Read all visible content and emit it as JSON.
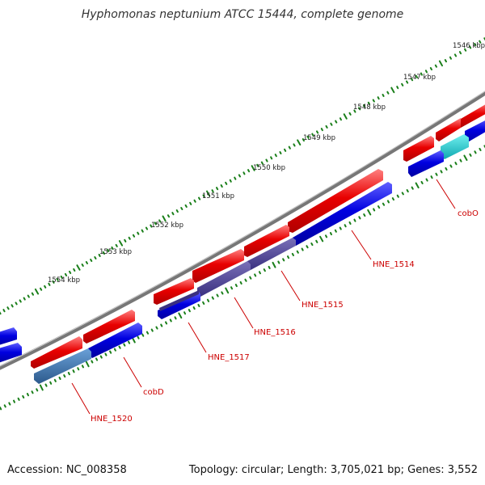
{
  "title": "Hyphomonas neptunium ATCC 15444, complete genome",
  "footer": {
    "accession": "Accession: NC_008358",
    "topology": "Topology: circular; Length: 3,705,021 bp; Genes: 3,552"
  },
  "colors": {
    "forward": "#e80000",
    "reverse": "#0000e0",
    "label": "#cc0000",
    "tick": "#1a7f1a",
    "backbone": "#777777"
  },
  "scale": [
    "1546 kbp",
    "1547 kbp",
    "1548 kbp",
    "1549 kbp",
    "1550 kbp",
    "1551 kbp",
    "1552 kbp",
    "1553 kbp",
    "1554 kbp"
  ],
  "genes": [
    {
      "label": "cobO",
      "strand": "reverse",
      "highlight": "cyan"
    },
    {
      "label": "HNE_1514",
      "strand": "reverse"
    },
    {
      "label": "HNE_1515",
      "strand": "reverse",
      "highlight": "indigo"
    },
    {
      "label": "HNE_1516",
      "strand": "reverse",
      "highlight": "indigo"
    },
    {
      "label": "HNE_1517",
      "strand": "reverse"
    },
    {
      "label": "cobD",
      "strand": "reverse"
    },
    {
      "label": "HNE_1520",
      "strand": "reverse",
      "highlight": "steelblue"
    }
  ]
}
